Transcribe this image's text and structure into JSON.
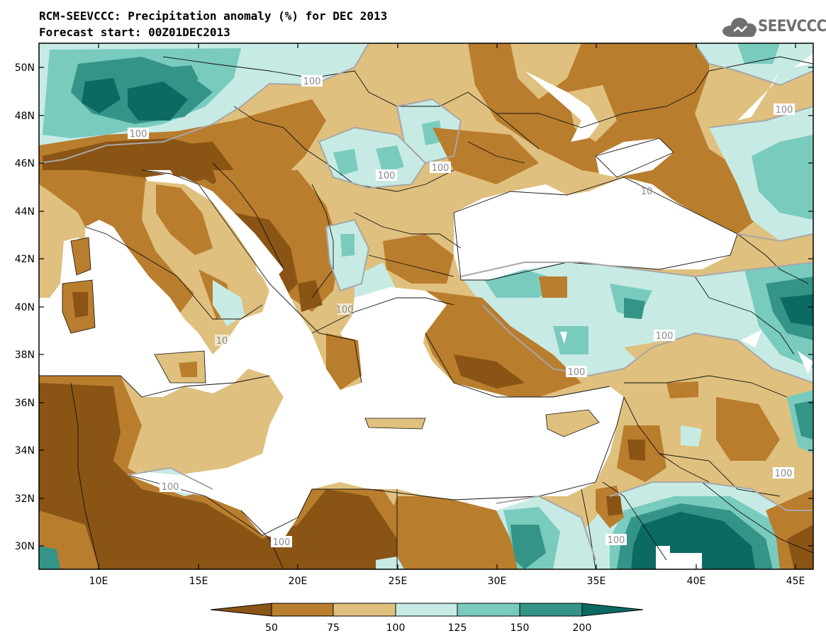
{
  "header": {
    "title_line1": "RCM-SEEVCCC: Precipitation anomaly (%) for DEC 2013",
    "title_line2": "Forecast start: 00Z01DEC2013",
    "logo_text": "SEEVCCC"
  },
  "map": {
    "y_axis_labels": [
      "50N",
      "48N",
      "46N",
      "44N",
      "42N",
      "40N",
      "38N",
      "36N",
      "34N",
      "32N",
      "30N"
    ],
    "x_axis_labels": [
      "10E",
      "15E",
      "20E",
      "25E",
      "30E",
      "35E",
      "40E",
      "45E"
    ],
    "contour_labels": [
      "100",
      "100",
      "100",
      "100",
      "100",
      "100",
      "100",
      "100",
      "100",
      "100",
      "100",
      "100",
      "10",
      "10"
    ]
  },
  "colorbar": {
    "tick_labels": [
      "50",
      "75",
      "100",
      "125",
      "150",
      "200"
    ],
    "colors": [
      "#8a5415",
      "#b97d2e",
      "#dfc07e",
      "#c7ebe4",
      "#79cbbe",
      "#359488",
      "#0b6a62"
    ]
  },
  "palette": {
    "very_dry": "#8a5415",
    "dry": "#b97d2e",
    "slightly_dry": "#dfc07e",
    "slightly_wet": "#c7ebe4",
    "wet": "#79cbbe",
    "very_wet": "#359488",
    "extreme_wet": "#0b6a62",
    "contour_line": "#a7a7a7"
  }
}
